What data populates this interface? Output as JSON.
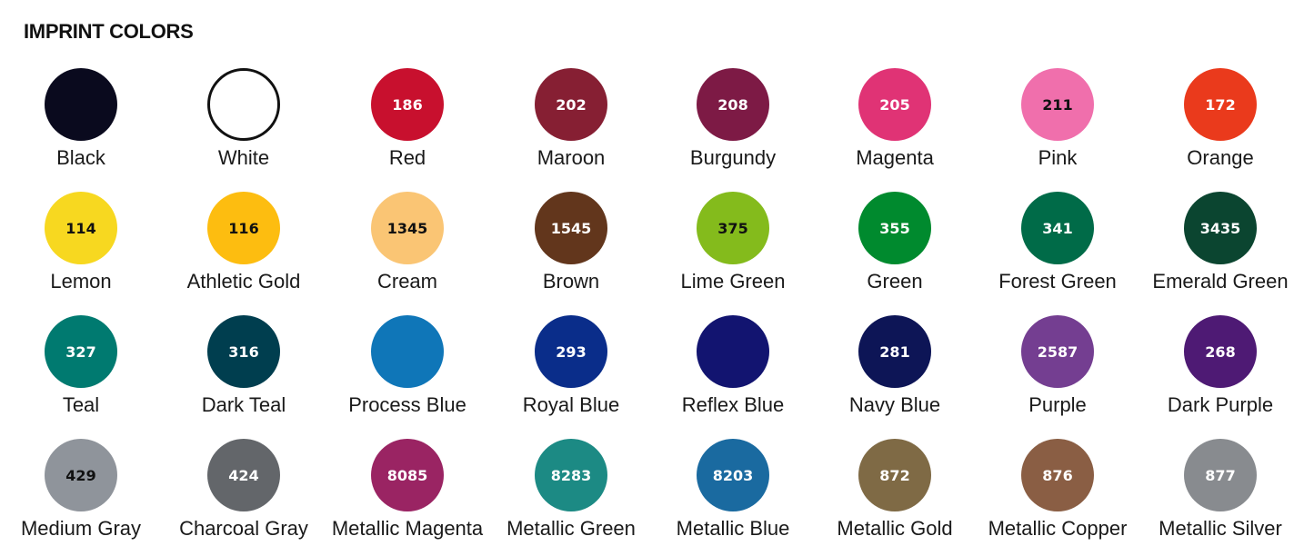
{
  "title": "IMPRINT COLORS",
  "colors": [
    {
      "name": "Black",
      "code": "",
      "hex": "#0a0a1e",
      "text": "#fff"
    },
    {
      "name": "White",
      "code": "",
      "hex": "#ffffff",
      "text": "#000",
      "border": "#111"
    },
    {
      "name": "Red",
      "code": "186",
      "hex": "#c8102e",
      "text": "#fff"
    },
    {
      "name": "Maroon",
      "code": "202",
      "hex": "#861f33",
      "text": "#fff"
    },
    {
      "name": "Burgundy",
      "code": "208",
      "hex": "#7d1a45",
      "text": "#fff"
    },
    {
      "name": "Magenta",
      "code": "205",
      "hex": "#e03375",
      "text": "#fff"
    },
    {
      "name": "Pink",
      "code": "211",
      "hex": "#f06fac",
      "text": "#111"
    },
    {
      "name": "Orange",
      "code": "172",
      "hex": "#ea3a1c",
      "text": "#fff"
    },
    {
      "name": "Lemon",
      "code": "114",
      "hex": "#f7d820",
      "text": "#111"
    },
    {
      "name": "Athletic Gold",
      "code": "116",
      "hex": "#fdbd10",
      "text": "#111"
    },
    {
      "name": "Cream",
      "code": "1345",
      "hex": "#fac574",
      "text": "#111"
    },
    {
      "name": "Brown",
      "code": "1545",
      "hex": "#62361c",
      "text": "#fff"
    },
    {
      "name": "Lime Green",
      "code": "375",
      "hex": "#84bb1c",
      "text": "#111"
    },
    {
      "name": "Green",
      "code": "355",
      "hex": "#008a2e",
      "text": "#fff"
    },
    {
      "name": "Forest Green",
      "code": "341",
      "hex": "#006b48",
      "text": "#fff"
    },
    {
      "name": "Emerald Green",
      "code": "3435",
      "hex": "#0b4530",
      "text": "#fff"
    },
    {
      "name": "Teal",
      "code": "327",
      "hex": "#007a70",
      "text": "#fff"
    },
    {
      "name": "Dark Teal",
      "code": "316",
      "hex": "#003e4f",
      "text": "#fff"
    },
    {
      "name": "Process Blue",
      "code": "",
      "hex": "#0f76b8",
      "text": "#fff"
    },
    {
      "name": "Royal Blue",
      "code": "293",
      "hex": "#0a2d8a",
      "text": "#fff"
    },
    {
      "name": "Reflex Blue",
      "code": "",
      "hex": "#121470",
      "text": "#fff"
    },
    {
      "name": "Navy Blue",
      "code": "281",
      "hex": "#0d1556",
      "text": "#fff"
    },
    {
      "name": "Purple",
      "code": "2587",
      "hex": "#743e91",
      "text": "#fff"
    },
    {
      "name": "Dark Purple",
      "code": "268",
      "hex": "#4e1a74",
      "text": "#fff"
    },
    {
      "name": "Medium Gray",
      "code": "429",
      "hex": "#8f949b",
      "text": "#111"
    },
    {
      "name": "Charcoal Gray",
      "code": "424",
      "hex": "#63666a",
      "text": "#fff"
    },
    {
      "name": "Metallic Magenta",
      "code": "8085",
      "hex": "#9a2463",
      "text": "#fff"
    },
    {
      "name": "Metallic Green",
      "code": "8283",
      "hex": "#1c8a84",
      "text": "#fff"
    },
    {
      "name": "Metallic Blue",
      "code": "8203",
      "hex": "#1a6aa0",
      "text": "#fff"
    },
    {
      "name": "Metallic Gold",
      "code": "872",
      "hex": "#7f6a45",
      "text": "#fff"
    },
    {
      "name": "Metallic Copper",
      "code": "876",
      "hex": "#8a5e44",
      "text": "#fff"
    },
    {
      "name": "Metallic Silver",
      "code": "877",
      "hex": "#888b8f",
      "text": "#fff"
    }
  ]
}
